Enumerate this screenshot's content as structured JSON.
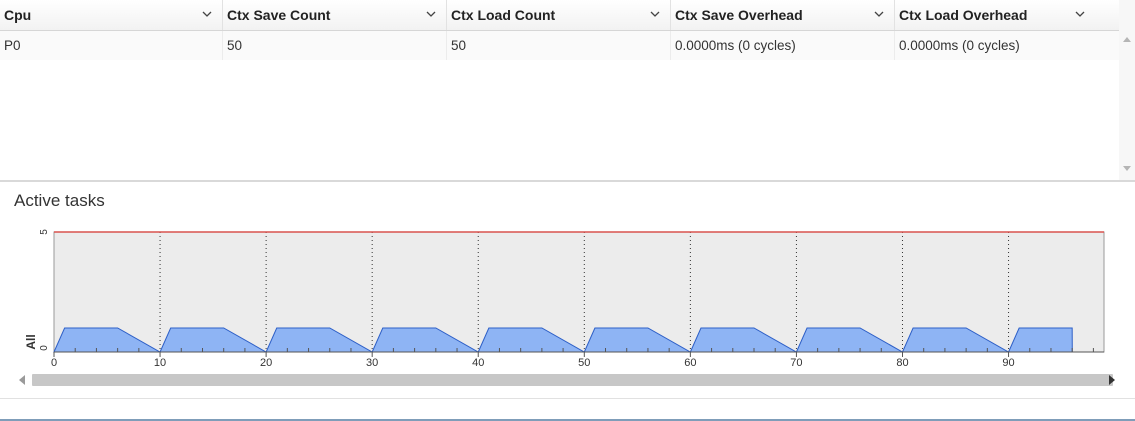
{
  "table": {
    "columns": [
      "Cpu",
      "Ctx Save Count",
      "Ctx Load Count",
      "Ctx Save Overhead",
      "Ctx Load Overhead"
    ],
    "rows": [
      [
        "P0",
        "50",
        "50",
        "0.0000ms (0 cycles)",
        "0.0000ms (0 cycles)"
      ]
    ]
  },
  "section": {
    "title": "Active tasks"
  },
  "chart_data": {
    "type": "area",
    "title": "Active tasks",
    "ylabel": "All",
    "xlabel": "",
    "xlim": [
      0,
      99
    ],
    "ylim": [
      0,
      5
    ],
    "yticks": [
      0,
      5
    ],
    "xticks": [
      0,
      10,
      20,
      30,
      40,
      50,
      60,
      70,
      80,
      90
    ],
    "limit_line": {
      "y": 5,
      "color": "#d9534f"
    },
    "fill_color": "#8eb4f4",
    "line_color": "#2d5fc7",
    "background": "#ececec",
    "grid": "vertical-dotted",
    "series": [
      {
        "x": [
          0,
          1,
          6,
          10,
          11,
          16,
          20,
          21,
          26,
          30,
          31,
          36,
          40,
          41,
          46,
          50,
          51,
          56,
          60,
          61,
          66,
          70,
          71,
          76,
          80,
          81,
          86,
          90,
          91,
          96,
          96.01,
          99
        ],
        "y": [
          0,
          1,
          1,
          0,
          1,
          1,
          0,
          1,
          1,
          0,
          1,
          1,
          0,
          1,
          1,
          0,
          1,
          1,
          0,
          1,
          1,
          0,
          1,
          1,
          0,
          1,
          1,
          0,
          1,
          1,
          0,
          0
        ]
      }
    ]
  }
}
